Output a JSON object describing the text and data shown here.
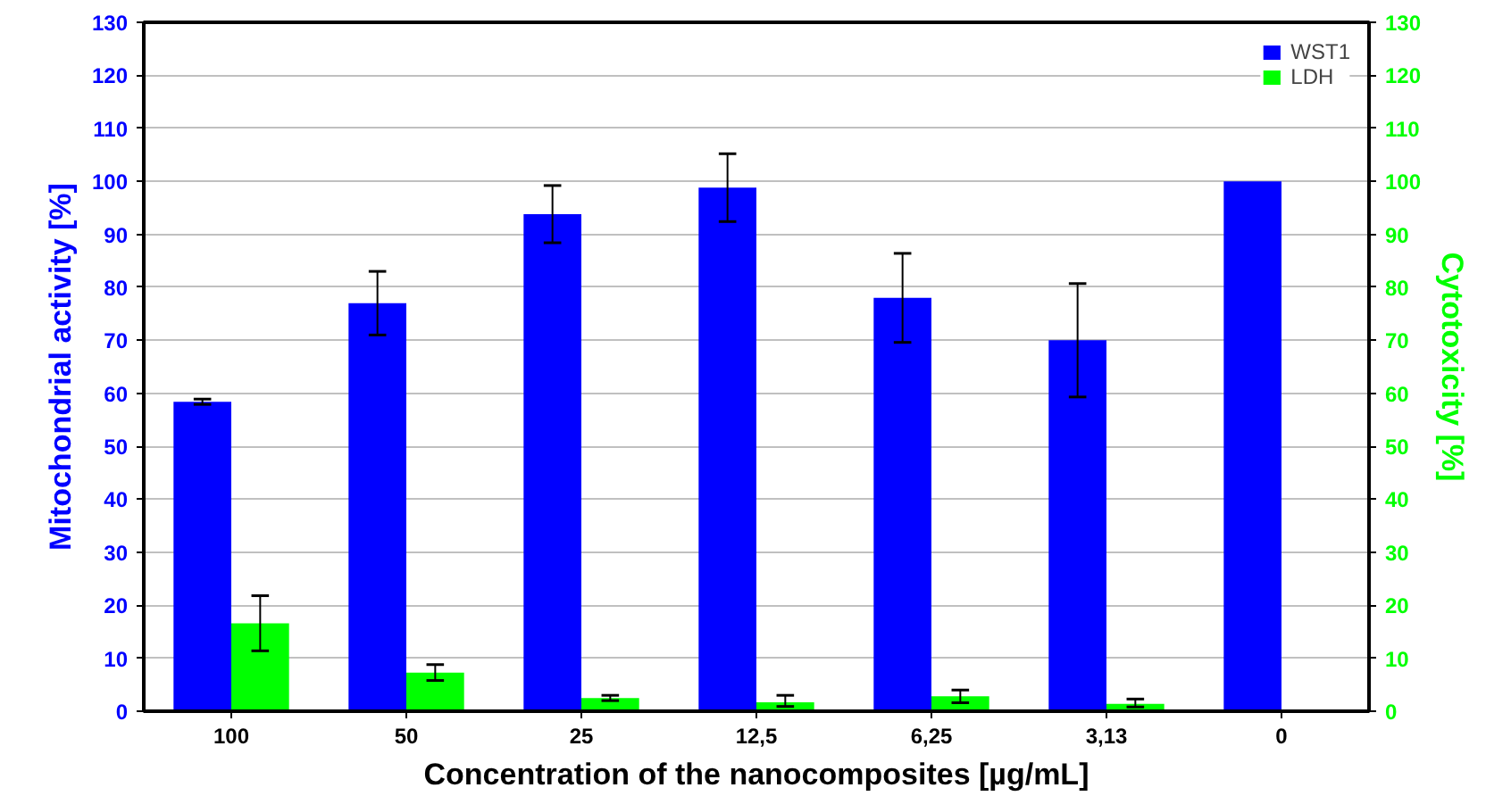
{
  "chart_data": {
    "type": "bar",
    "xlabel": "Concentration of the nanocomposites [µg/mL]",
    "ylabel": "Mitochondrial activity [%]",
    "y2label": "Cytotoxicity [%]",
    "categories": [
      "100",
      "50",
      "25",
      "12,5",
      "6,25",
      "3,13",
      "0"
    ],
    "series": [
      {
        "name": "WST1",
        "color": "#0000ff",
        "values": [
          58.4,
          77.0,
          93.8,
          98.8,
          78.0,
          70.0,
          100
        ],
        "errors": [
          0.5,
          6,
          5.4,
          6.4,
          8.4,
          10.7,
          null
        ]
      },
      {
        "name": "LDH",
        "color": "#00ff00",
        "axis": "y2",
        "values": [
          16.6,
          7.3,
          2.5,
          1.7,
          2.8,
          1.4,
          0
        ],
        "errors": [
          5.2,
          1.5,
          0.5,
          [
            0.9,
            3.0
          ],
          1.2,
          [
            0.8,
            2.3
          ],
          null
        ]
      }
    ],
    "ylim": [
      0,
      130
    ],
    "yticks": [
      0,
      10,
      20,
      30,
      40,
      50,
      60,
      70,
      80,
      90,
      100,
      110,
      120,
      130
    ],
    "y2lim": [
      0,
      130
    ],
    "y2ticks": [
      0,
      10,
      20,
      30,
      40,
      50,
      60,
      70,
      80,
      90,
      100,
      110,
      120,
      130
    ],
    "grid": "y",
    "legend": "top right"
  }
}
